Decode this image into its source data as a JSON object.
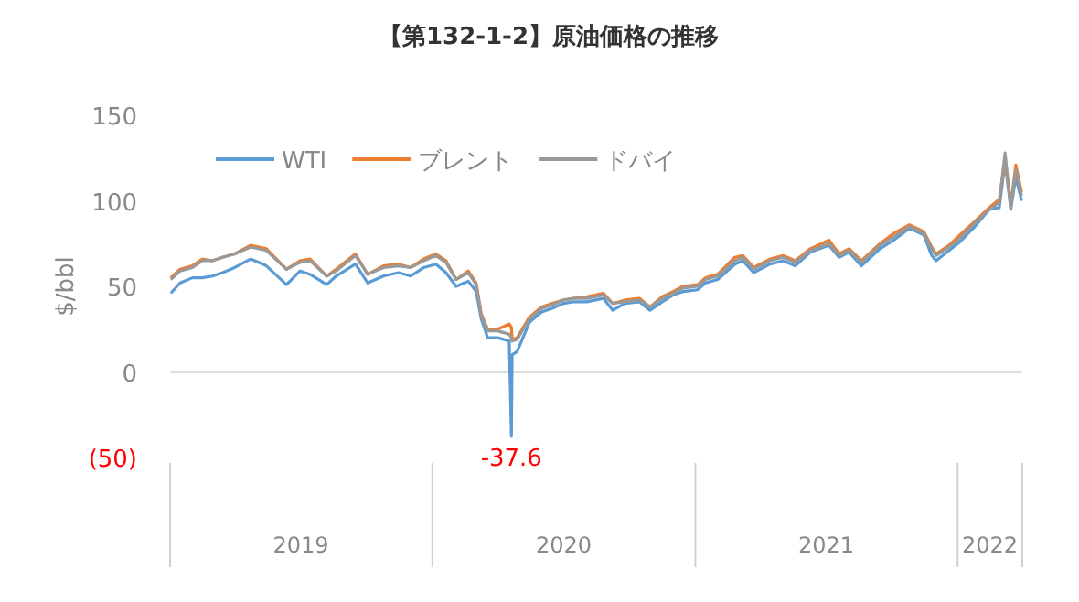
{
  "chart_data": {
    "type": "line",
    "title": "【第132-1-2】原油価格の推移",
    "ylabel": "$/bbl",
    "legend": "top",
    "grid": false,
    "marker": "none",
    "line_style": "solid",
    "xlim": [
      "2019-01-01",
      "2022-04-01"
    ],
    "xticks": [
      {
        "value": "2019-07-02",
        "label": "2019"
      },
      {
        "value": "2020-07-02",
        "label": "2020"
      },
      {
        "value": "2021-07-02",
        "label": "2021"
      },
      {
        "value": "2022-02-15",
        "label": "2022"
      }
    ],
    "ylim": [
      -50,
      150
    ],
    "yticks": [
      {
        "value": -50,
        "label": "(50)"
      },
      0,
      50,
      100,
      150
    ],
    "ref_lines": [
      {
        "axis": "y",
        "value": 0,
        "color": "#d9d9d9"
      }
    ],
    "annotations": [
      {
        "text": "-37.6",
        "x": "2020-04-20",
        "y": -37.6
      }
    ],
    "x": [
      "2019-01-02",
      "2019-01-15",
      "2019-02-01",
      "2019-02-15",
      "2019-03-01",
      "2019-03-15",
      "2019-04-01",
      "2019-04-23",
      "2019-05-15",
      "2019-06-12",
      "2019-07-01",
      "2019-07-15",
      "2019-08-07",
      "2019-08-20",
      "2019-09-16",
      "2019-10-03",
      "2019-10-25",
      "2019-11-15",
      "2019-12-02",
      "2019-12-20",
      "2020-01-06",
      "2020-01-20",
      "2020-02-03",
      "2020-02-20",
      "2020-03-02",
      "2020-03-09",
      "2020-03-18",
      "2020-04-01",
      "2020-04-17",
      "2020-04-20",
      "2020-04-21",
      "2020-04-28",
      "2020-05-15",
      "2020-06-01",
      "2020-06-15",
      "2020-07-01",
      "2020-07-15",
      "2020-08-03",
      "2020-08-26",
      "2020-09-08",
      "2020-09-25",
      "2020-10-15",
      "2020-10-30",
      "2020-11-16",
      "2020-12-01",
      "2020-12-15",
      "2021-01-04",
      "2021-01-15",
      "2021-02-01",
      "2021-02-25",
      "2021-03-08",
      "2021-03-23",
      "2021-04-15",
      "2021-05-03",
      "2021-05-20",
      "2021-06-10",
      "2021-07-06",
      "2021-07-20",
      "2021-08-03",
      "2021-08-20",
      "2021-09-15",
      "2021-10-04",
      "2021-10-26",
      "2021-11-15",
      "2021-11-26",
      "2021-12-02",
      "2021-12-20",
      "2022-01-04",
      "2022-01-25",
      "2022-02-14",
      "2022-02-28",
      "2022-03-08",
      "2022-03-16",
      "2022-03-23",
      "2022-03-31"
    ],
    "series": [
      {
        "name": "WTI",
        "color": "#5b9bd5",
        "values": [
          46,
          52,
          55,
          55,
          56,
          58,
          61,
          66,
          62,
          51,
          59,
          57,
          51,
          56,
          63,
          52,
          56,
          58,
          56,
          61,
          63,
          58,
          50,
          53,
          47,
          31,
          20,
          20,
          18,
          -37.6,
          10,
          12,
          29,
          35,
          37,
          40,
          41,
          41,
          43,
          36,
          40,
          41,
          36,
          41,
          45,
          47,
          48,
          52,
          54,
          63,
          65,
          58,
          63,
          65,
          62,
          70,
          74,
          67,
          70,
          62,
          72,
          77,
          84,
          80,
          68,
          65,
          71,
          76,
          85,
          95,
          96,
          123,
          95,
          114,
          100
        ]
      },
      {
        "name": "ブレント",
        "color": "#ed7d31",
        "values": [
          55,
          60,
          62,
          66,
          65,
          67,
          69,
          74,
          72,
          60,
          65,
          66,
          56,
          60,
          69,
          57,
          62,
          63,
          61,
          66,
          69,
          65,
          54,
          59,
          52,
          34,
          25,
          25,
          28,
          26,
          19,
          20,
          32,
          38,
          40,
          42,
          43,
          44,
          46,
          40,
          42,
          43,
          38,
          44,
          47,
          50,
          51,
          55,
          57,
          67,
          68,
          61,
          66,
          68,
          65,
          72,
          77,
          69,
          72,
          65,
          75,
          81,
          86,
          82,
          73,
          69,
          74,
          80,
          88,
          96,
          101,
          124,
          98,
          121,
          105
        ]
      },
      {
        "name": "ドバイ",
        "color": "#999999",
        "values": [
          54,
          59,
          61,
          65,
          65,
          67,
          69,
          73,
          71,
          60,
          64,
          65,
          56,
          59,
          68,
          57,
          61,
          62,
          61,
          65,
          68,
          64,
          54,
          58,
          51,
          33,
          24,
          24,
          22,
          20,
          18,
          19,
          31,
          37,
          39,
          42,
          43,
          43,
          45,
          40,
          41,
          42,
          38,
          43,
          46,
          49,
          50,
          54,
          56,
          65,
          67,
          60,
          65,
          67,
          64,
          71,
          75,
          68,
          71,
          64,
          74,
          79,
          85,
          81,
          72,
          68,
          73,
          78,
          87,
          95,
          99,
          128,
          96,
          118,
          103
        ]
      }
    ]
  }
}
